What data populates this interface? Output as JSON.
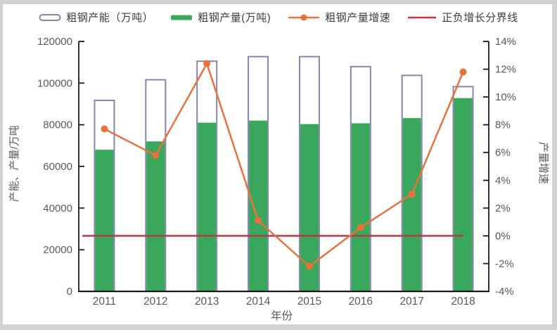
{
  "chart_data": {
    "type": "bar+line-combo",
    "title": "",
    "categories": [
      "2011",
      "2012",
      "2013",
      "2014",
      "2015",
      "2016",
      "2017",
      "2018"
    ],
    "xlabel": "年份",
    "ylabel_left": "产能、产量/万吨",
    "ylabel_right": "产量增速",
    "ylim_left": [
      0,
      120000
    ],
    "yticks_left": [
      "0",
      "20000",
      "40000",
      "60000",
      "80000",
      "100000",
      "120000"
    ],
    "ylim_right": [
      -4,
      14
    ],
    "yticks_right": [
      "-4%",
      "-2%",
      "0%",
      "2%",
      "4%",
      "6%",
      "8%",
      "10%",
      "12%",
      "14%"
    ],
    "grid": false,
    "legend_position": "top",
    "series": [
      {
        "name": "粗钢产能（万吨）",
        "kind": "bar-outline",
        "axis": "left",
        "values": [
          91700,
          101600,
          110500,
          112700,
          112700,
          107900,
          103700,
          98300
        ],
        "color": "#8487ae"
      },
      {
        "name": "粗钢产量(万吨)",
        "kind": "bar-filled",
        "axis": "left",
        "values": [
          68000,
          72000,
          81000,
          82000,
          80300,
          80700,
          83200,
          92800
        ],
        "color": "#3aa85c"
      },
      {
        "name": "粗钢产量增速",
        "kind": "line-marker",
        "axis": "right",
        "values": [
          7.7,
          5.8,
          12.4,
          1.1,
          -2.2,
          0.6,
          3.0,
          11.8
        ],
        "color": "#e8723c"
      },
      {
        "name": "正负增长分界线",
        "kind": "line-flat",
        "axis": "right",
        "value": 0,
        "color": "#bb3744"
      }
    ],
    "axis_color": "#1a1a1a",
    "tick_text_color": "#595959"
  }
}
